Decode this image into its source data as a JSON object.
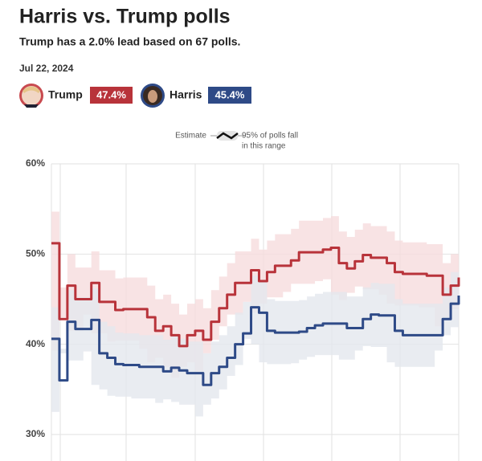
{
  "chart_data": {
    "type": "step-line",
    "title": "Harris vs. Trump polls",
    "subtitle": "Trump has a 2.0% lead based on 67 polls.",
    "date": "Jul 22, 2024",
    "legend_line": "Estimate",
    "legend_band": [
      "95% of polls fall",
      "in this range"
    ],
    "categories": [
      null,
      null,
      null,
      null,
      null,
      null,
      null,
      null,
      null,
      null,
      null,
      null,
      null,
      null,
      null,
      null,
      null,
      null,
      null,
      null,
      null,
      null,
      null,
      null,
      null,
      null,
      null,
      null,
      null,
      null,
      null,
      null,
      null,
      null,
      null,
      null,
      null,
      null,
      null,
      null,
      null,
      null,
      null,
      null,
      null,
      null,
      null,
      null,
      null,
      null,
      null,
      null
    ],
    "ylim": [
      30,
      60
    ],
    "yticks": [
      {
        "value": 30,
        "label": "30%"
      },
      {
        "value": 40,
        "label": "40%"
      },
      {
        "value": 50,
        "label": "50%"
      },
      {
        "value": 60,
        "label": "60%"
      }
    ],
    "grid": true,
    "series": [
      {
        "name": "Trump",
        "color": "#b8333a",
        "band_color": "#f6dcdd",
        "current": 47.4,
        "current_label": "47.4%",
        "values": [
          51.2,
          42.8,
          46.5,
          45.0,
          45.0,
          46.8,
          44.7,
          44.7,
          43.8,
          43.9,
          43.9,
          43.9,
          43.0,
          41.5,
          42.0,
          41.0,
          39.8,
          41.0,
          41.5,
          40.5,
          42.5,
          44.0,
          45.5,
          46.8,
          46.8,
          48.2,
          47.0,
          48.0,
          48.7,
          48.7,
          49.3,
          50.2,
          50.2,
          50.2,
          50.5,
          50.7,
          49.0,
          48.4,
          49.2,
          49.9,
          49.6,
          49.6,
          49.0,
          48.0,
          47.8,
          47.8,
          47.8,
          47.6,
          47.6,
          45.5,
          46.5,
          47.4
        ],
        "lower": [
          47.7,
          39.3,
          43.0,
          41.5,
          41.5,
          43.3,
          41.2,
          41.2,
          40.3,
          40.4,
          40.4,
          40.4,
          39.5,
          38.0,
          38.5,
          37.5,
          36.3,
          37.5,
          38.0,
          37.0,
          39.0,
          40.5,
          42.0,
          43.3,
          43.3,
          44.7,
          43.5,
          44.5,
          45.2,
          45.2,
          45.8,
          46.7,
          46.7,
          46.7,
          47.0,
          47.2,
          45.5,
          44.9,
          45.7,
          46.4,
          46.1,
          46.1,
          45.5,
          44.5,
          44.3,
          44.3,
          44.3,
          44.1,
          44.1,
          42.0,
          43.0,
          43.9
        ],
        "upper": [
          54.7,
          46.3,
          50.0,
          48.5,
          48.5,
          50.3,
          48.2,
          48.2,
          47.3,
          47.4,
          47.4,
          47.4,
          46.5,
          45.0,
          45.5,
          44.5,
          43.3,
          44.5,
          45.0,
          44.0,
          46.0,
          47.5,
          49.0,
          50.3,
          50.3,
          51.7,
          50.5,
          51.5,
          52.2,
          52.2,
          52.8,
          53.7,
          53.7,
          53.7,
          54.0,
          54.2,
          52.5,
          51.9,
          52.7,
          53.4,
          53.1,
          53.1,
          52.5,
          51.5,
          51.3,
          51.3,
          51.3,
          51.1,
          51.1,
          49.0,
          50.0,
          50.9
        ]
      },
      {
        "name": "Harris",
        "color": "#2e4a87",
        "band_color": "#e3e7ee",
        "current": 45.4,
        "current_label": "45.4%",
        "values": [
          40.6,
          36.0,
          42.5,
          41.7,
          41.7,
          42.7,
          39.0,
          38.5,
          37.8,
          37.7,
          37.7,
          37.5,
          37.5,
          37.5,
          37.0,
          37.4,
          37.1,
          36.8,
          36.8,
          35.5,
          36.8,
          37.5,
          38.5,
          40.0,
          41.2,
          44.1,
          43.5,
          41.5,
          41.3,
          41.3,
          41.3,
          41.4,
          41.8,
          42.1,
          42.3,
          42.3,
          42.3,
          41.8,
          41.8,
          42.8,
          43.3,
          43.2,
          43.2,
          41.5,
          41.0,
          41.0,
          41.0,
          41.0,
          41.0,
          42.8,
          44.5,
          45.4
        ],
        "lower": [
          37.1,
          32.5,
          39.0,
          38.2,
          38.2,
          39.2,
          35.5,
          35.0,
          34.3,
          34.2,
          34.2,
          34.0,
          34.0,
          34.0,
          33.5,
          33.9,
          33.6,
          33.3,
          33.3,
          32.0,
          33.3,
          34.0,
          35.0,
          36.5,
          37.7,
          40.6,
          40.0,
          38.0,
          37.8,
          37.8,
          37.8,
          37.9,
          38.3,
          38.6,
          38.8,
          38.8,
          38.8,
          38.3,
          38.3,
          39.3,
          39.8,
          39.7,
          39.7,
          38.0,
          37.5,
          37.5,
          37.5,
          37.5,
          37.5,
          39.3,
          41.0,
          41.9
        ],
        "upper": [
          44.1,
          39.5,
          46.0,
          45.2,
          45.2,
          46.2,
          42.5,
          42.0,
          41.3,
          41.2,
          41.2,
          41.0,
          41.0,
          41.0,
          40.5,
          40.9,
          40.6,
          40.3,
          40.3,
          39.0,
          40.3,
          41.0,
          42.0,
          43.5,
          44.7,
          47.6,
          47.0,
          45.0,
          44.8,
          44.8,
          44.8,
          44.9,
          45.3,
          45.6,
          45.8,
          45.8,
          45.8,
          45.3,
          45.3,
          46.3,
          46.8,
          46.7,
          46.7,
          45.0,
          44.5,
          44.5,
          44.5,
          44.5,
          44.5,
          46.3,
          48.0,
          48.9
        ]
      }
    ]
  }
}
